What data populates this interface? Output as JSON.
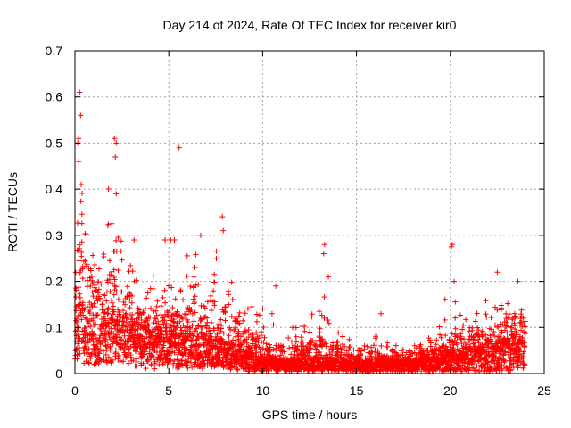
{
  "chart_data": {
    "type": "scatter",
    "title": "Day 214 of 2024, Rate Of TEC Index for receiver kir0",
    "xlabel": "GPS time / hours",
    "ylabel": "ROTI / TECUs",
    "xlim": [
      0,
      25
    ],
    "ylim": [
      0,
      0.7
    ],
    "x_ticks": [
      0,
      5,
      10,
      15,
      20,
      25
    ],
    "y_ticks": [
      0,
      0.1,
      0.2,
      0.3,
      0.4,
      0.5,
      0.6,
      0.7
    ],
    "grid": true,
    "marker": "+",
    "color": "#ff0000",
    "envelope": {
      "description": "approximate upper/median/lower ROTI envelope by hour, used to reproduce dense scatter",
      "hours": [
        0,
        0.5,
        1,
        1.5,
        2,
        2.5,
        3,
        3.5,
        4,
        5,
        6,
        7,
        8,
        9,
        10,
        11,
        12,
        13,
        14,
        15,
        16,
        17,
        18,
        19,
        20,
        21,
        22,
        23,
        24
      ],
      "upper": [
        0.48,
        0.4,
        0.32,
        0.3,
        0.36,
        0.26,
        0.24,
        0.22,
        0.2,
        0.2,
        0.22,
        0.26,
        0.24,
        0.16,
        0.14,
        0.1,
        0.1,
        0.14,
        0.1,
        0.06,
        0.08,
        0.06,
        0.07,
        0.08,
        0.14,
        0.12,
        0.15,
        0.18,
        0.2
      ],
      "median": [
        0.14,
        0.12,
        0.11,
        0.1,
        0.12,
        0.1,
        0.09,
        0.09,
        0.08,
        0.07,
        0.07,
        0.07,
        0.06,
        0.04,
        0.03,
        0.025,
        0.025,
        0.03,
        0.025,
        0.02,
        0.025,
        0.02,
        0.025,
        0.03,
        0.04,
        0.04,
        0.05,
        0.06,
        0.06
      ],
      "lower": [
        0.03,
        0.02,
        0.02,
        0.02,
        0.02,
        0.02,
        0.02,
        0.01,
        0.01,
        0.01,
        0.01,
        0.01,
        0.01,
        0.005,
        0.005,
        0.005,
        0.005,
        0.005,
        0.005,
        0.005,
        0.005,
        0.005,
        0.005,
        0.005,
        0.005,
        0.005,
        0.005,
        0.005,
        0.005
      ]
    },
    "highlighted_points": [
      {
        "x": 0.25,
        "y": 0.61
      },
      {
        "x": 0.3,
        "y": 0.56
      },
      {
        "x": 0.15,
        "y": 0.5
      },
      {
        "x": 0.2,
        "y": 0.51
      },
      {
        "x": 2.1,
        "y": 0.51
      },
      {
        "x": 2.2,
        "y": 0.5
      },
      {
        "x": 5.55,
        "y": 0.49
      },
      {
        "x": 0.2,
        "y": 0.46
      },
      {
        "x": 2.15,
        "y": 0.47
      },
      {
        "x": 2.2,
        "y": 0.39
      },
      {
        "x": 7.85,
        "y": 0.34
      },
      {
        "x": 7.9,
        "y": 0.31
      },
      {
        "x": 4.8,
        "y": 0.29
      },
      {
        "x": 5.3,
        "y": 0.29
      },
      {
        "x": 5.1,
        "y": 0.29
      },
      {
        "x": 6.7,
        "y": 0.3
      },
      {
        "x": 3.15,
        "y": 0.29
      },
      {
        "x": 13.3,
        "y": 0.28
      },
      {
        "x": 13.25,
        "y": 0.26
      },
      {
        "x": 20.1,
        "y": 0.28
      },
      {
        "x": 20.05,
        "y": 0.275
      },
      {
        "x": 13.5,
        "y": 0.21
      },
      {
        "x": 20.2,
        "y": 0.2
      },
      {
        "x": 22.5,
        "y": 0.22
      },
      {
        "x": 23.6,
        "y": 0.2
      },
      {
        "x": 10.7,
        "y": 0.19
      },
      {
        "x": 10.0,
        "y": 0.14
      },
      {
        "x": 10.5,
        "y": 0.13
      },
      {
        "x": 16.3,
        "y": 0.13
      },
      {
        "x": 11.6,
        "y": 0.1
      }
    ]
  }
}
